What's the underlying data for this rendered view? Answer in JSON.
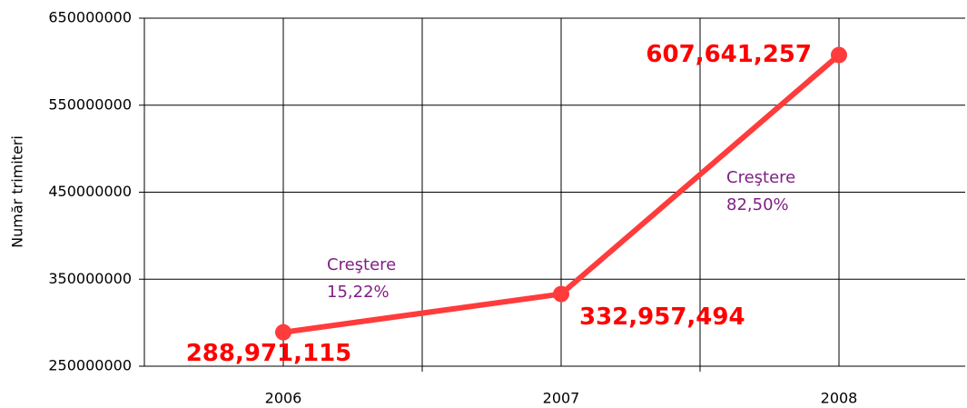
{
  "chart_data": {
    "type": "line",
    "y_label": "Număr trimiteri",
    "categories": [
      "2006",
      "2007",
      "2008"
    ],
    "series": [
      {
        "name": "Număr trimiteri",
        "color": "#ff3b3b",
        "values": [
          288971115,
          332957494,
          607641257
        ],
        "value_labels": [
          "288,971,115",
          "332,957,494",
          "607,641,257"
        ]
      }
    ],
    "ylim": [
      250000000,
      650000000
    ],
    "yticks": [
      250000000,
      350000000,
      450000000,
      550000000,
      650000000
    ],
    "grid": true,
    "annotations": [
      {
        "lines": [
          "Creştere",
          "15,22%"
        ],
        "color": "#7f1f86"
      },
      {
        "lines": [
          "Creştere",
          "82,50%"
        ],
        "color": "#7f1f86"
      }
    ]
  }
}
